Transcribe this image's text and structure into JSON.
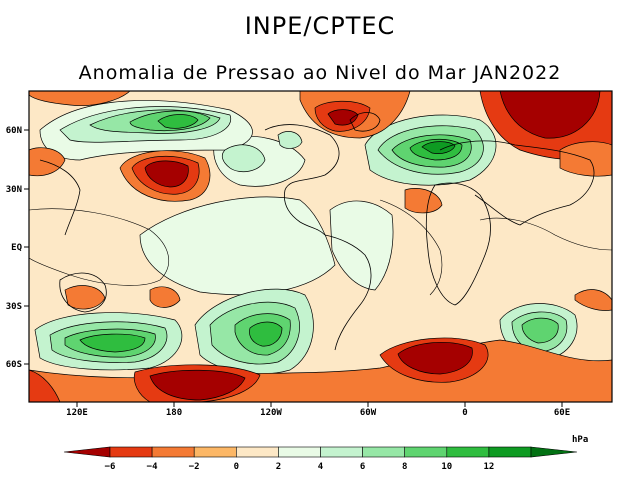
{
  "header": {
    "org": "INPE/CPTEC",
    "title": "Anomalia de Pressao ao Nivel do Mar JAN2022"
  },
  "map": {
    "lat_labels": [
      "60N",
      "30N",
      "EQ",
      "30S",
      "60S"
    ],
    "lon_labels": [
      "120E",
      "180",
      "120W",
      "60W",
      "0",
      "60E"
    ]
  },
  "colorbar": {
    "unit": "hPa",
    "tick_labels": [
      "−6",
      "−4",
      "−2",
      "0",
      "2",
      "4",
      "6",
      "8",
      "10",
      "12"
    ],
    "colors": [
      "#a50000",
      "#e53a12",
      "#f47a34",
      "#fcb766",
      "#fde8c6",
      "#e9fbe6",
      "#c4f3cf",
      "#96e7a6",
      "#5fd470",
      "#2fbd3f",
      "#0e9b22",
      "#027113"
    ]
  }
}
